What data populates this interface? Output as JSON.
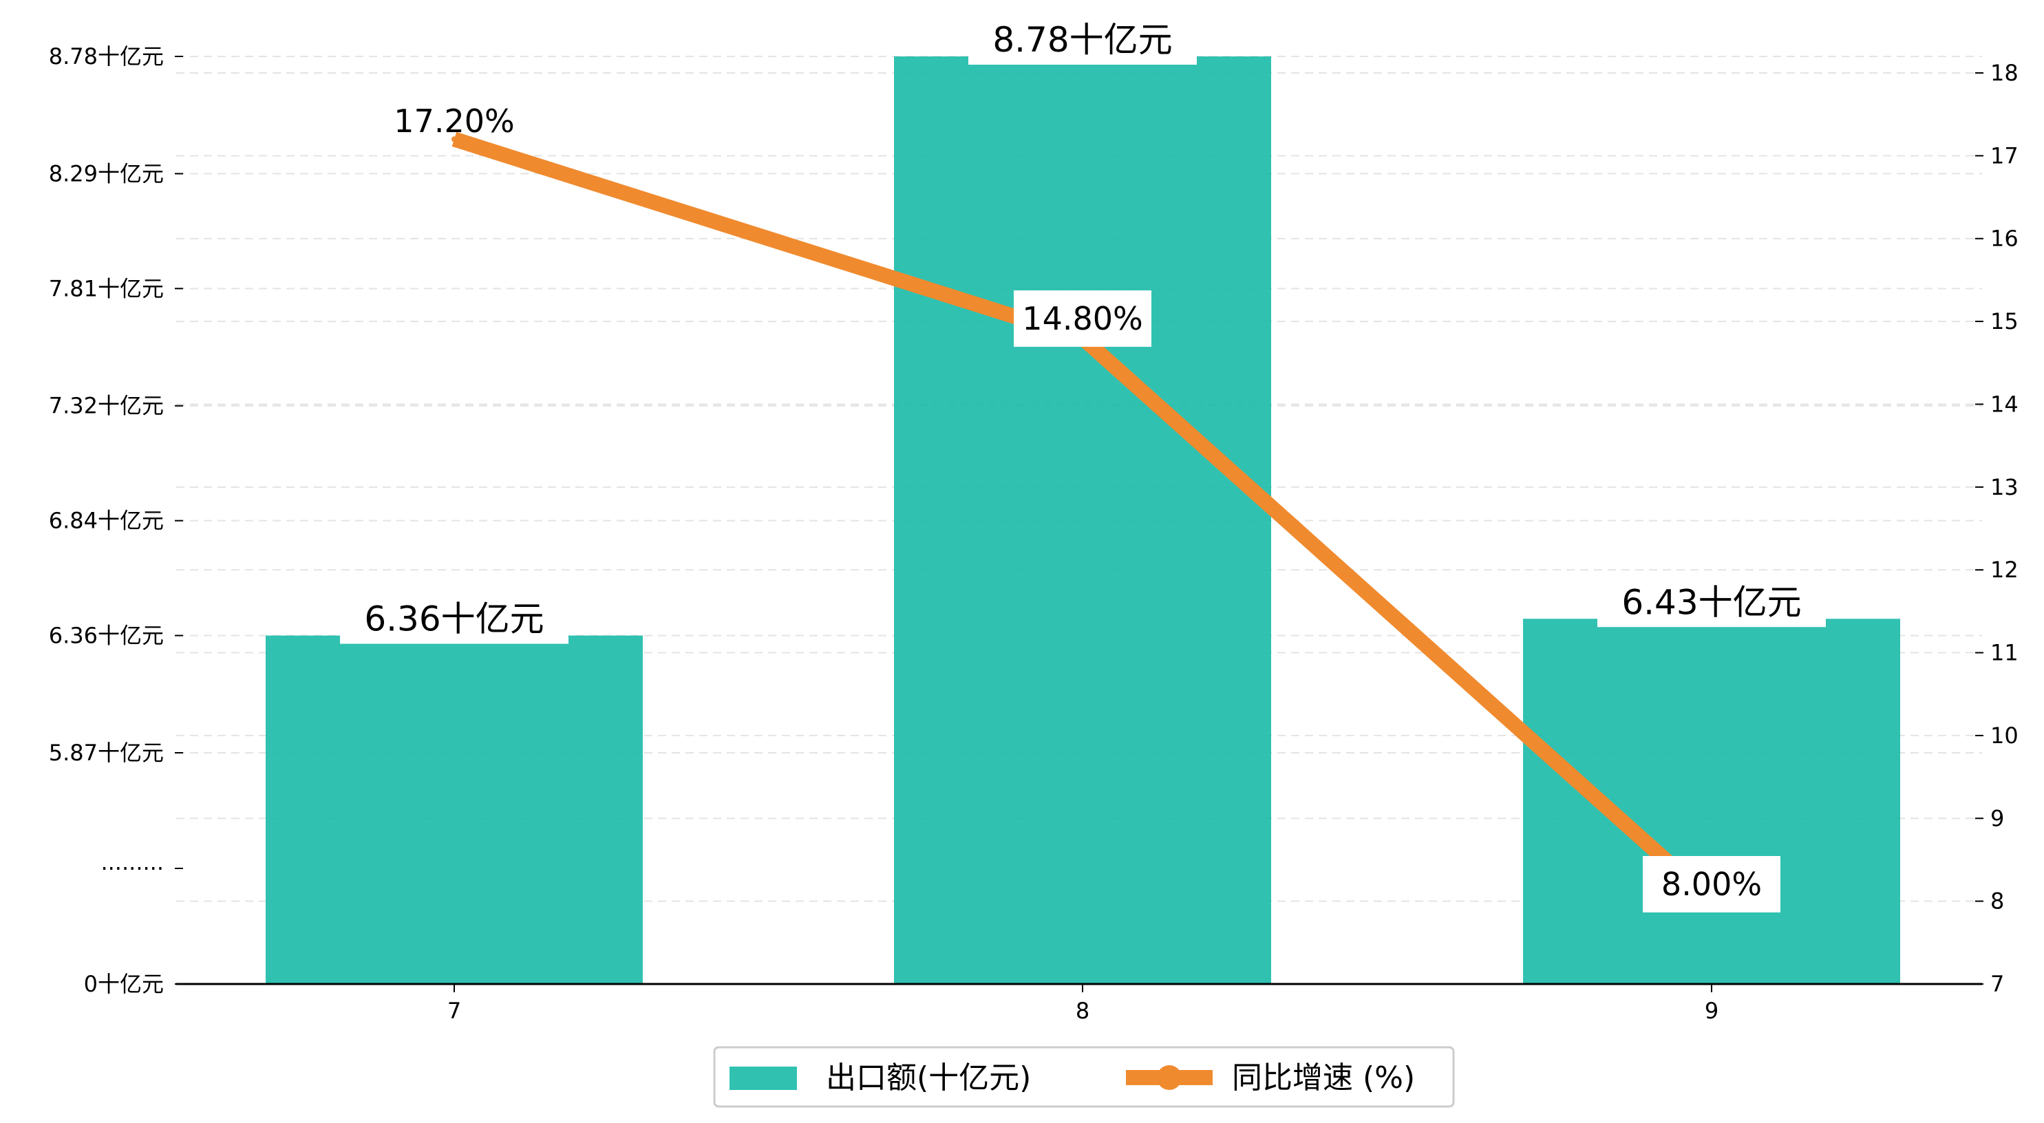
{
  "chart_data": {
    "type": "bar",
    "categories": [
      "7",
      "8",
      "9"
    ],
    "series": [
      {
        "name": "出口额(十亿元)",
        "type": "bar",
        "axis": "left",
        "values": [
          6.36,
          8.78,
          6.43
        ],
        "labels": [
          "6.36十亿元",
          "8.78十亿元",
          "6.43十亿元"
        ],
        "color": "#1ABAA8"
      },
      {
        "name": "同比增速 (%)",
        "type": "line",
        "axis": "right",
        "values": [
          17.2,
          14.8,
          8.0
        ],
        "labels": [
          "17.20%",
          "14.80%",
          "8.00%"
        ],
        "color": "#F08A2E"
      }
    ],
    "left_axis": {
      "ticks": [
        {
          "value": 0,
          "label": "0十亿元"
        },
        {
          "value": null,
          "label": "·········"
        },
        {
          "value": 5.87,
          "label": "5.87十亿元"
        },
        {
          "value": 6.36,
          "label": "6.36十亿元"
        },
        {
          "value": 6.84,
          "label": "6.84十亿元"
        },
        {
          "value": 7.32,
          "label": "7.32十亿元"
        },
        {
          "value": 7.81,
          "label": "7.81十亿元"
        },
        {
          "value": 8.29,
          "label": "8.29十亿元"
        },
        {
          "value": 8.78,
          "label": "8.78十亿元"
        }
      ],
      "broken": true
    },
    "right_axis": {
      "ylim": [
        7,
        18
      ],
      "ticks": [
        7,
        8,
        9,
        10,
        11,
        12,
        13,
        14,
        15,
        16,
        17,
        18
      ]
    },
    "grid": "horizontal dashed",
    "legend_position": "bottom-center"
  }
}
